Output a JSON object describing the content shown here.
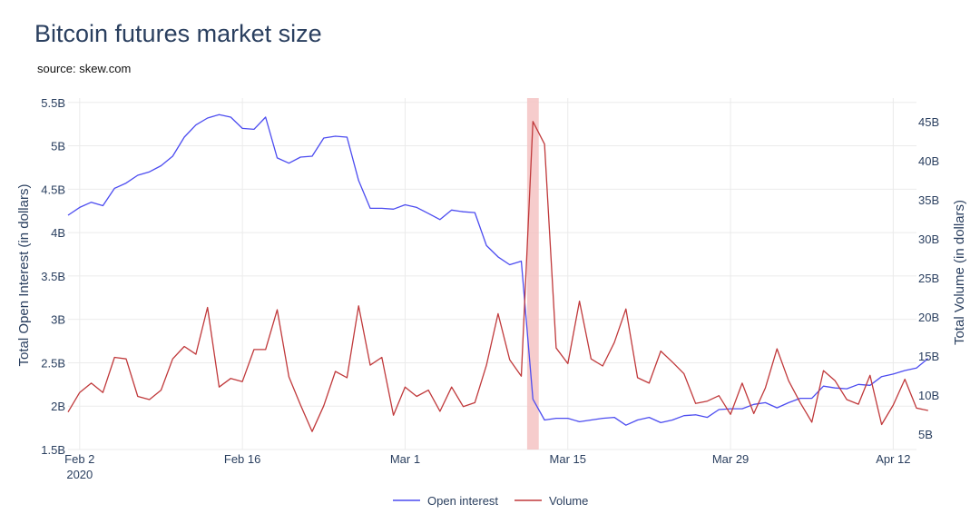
{
  "header": {
    "title": "Bitcoin futures market size",
    "subtitle": "source: skew.com"
  },
  "chart_data": {
    "type": "line",
    "title": "Bitcoin futures market size",
    "subtitle": "source: skew.com",
    "start_date": "2020-02-01",
    "x_tick_labels": [
      {
        "date": "2020-02-02",
        "label": "Feb 2",
        "sublabel": "2020"
      },
      {
        "date": "2020-02-16",
        "label": "Feb 16"
      },
      {
        "date": "2020-03-01",
        "label": "Mar 1"
      },
      {
        "date": "2020-03-15",
        "label": "Mar 15"
      },
      {
        "date": "2020-03-29",
        "label": "Mar 29"
      },
      {
        "date": "2020-04-12",
        "label": "Apr 12"
      }
    ],
    "xlim": [
      "2020-02-01",
      "2020-04-14"
    ],
    "y_left": {
      "label": "Total Open Interest (in dollars)",
      "range": [
        1.5,
        5.55
      ],
      "ticks": [
        1.5,
        2,
        2.5,
        3,
        3.5,
        4,
        4.5,
        5,
        5.5
      ],
      "tick_labels": [
        "1.5B",
        "2B",
        "2.5B",
        "3B",
        "3.5B",
        "4B",
        "4.5B",
        "5B",
        "5.5B"
      ]
    },
    "y_right": {
      "label": "Total Volume (in dollars)",
      "range": [
        3.0,
        48.0
      ],
      "ticks": [
        5,
        10,
        15,
        20,
        25,
        30,
        35,
        40,
        45
      ],
      "tick_labels": [
        "5B",
        "10B",
        "15B",
        "20B",
        "25B",
        "30B",
        "35B",
        "40B",
        "45B"
      ]
    },
    "highlight": {
      "start": "2020-03-12",
      "end": "2020-03-13",
      "color": "#f4c3c3"
    },
    "grid": true,
    "legend_position": "bottom-center",
    "series": [
      {
        "name": "Open interest",
        "axis": "left",
        "color": "#4c4cf0",
        "values": [
          4.2,
          4.29,
          4.35,
          4.31,
          4.51,
          4.57,
          4.66,
          4.7,
          4.77,
          4.88,
          5.1,
          5.24,
          5.32,
          5.36,
          5.33,
          5.2,
          5.19,
          5.33,
          4.86,
          4.8,
          4.87,
          4.88,
          5.09,
          5.11,
          5.1,
          4.6,
          4.28,
          4.28,
          4.27,
          4.32,
          4.29,
          4.22,
          4.15,
          4.26,
          4.24,
          4.23,
          3.85,
          3.72,
          3.63,
          3.67,
          2.08,
          1.84,
          1.86,
          1.86,
          1.82,
          1.84,
          1.86,
          1.87,
          1.78,
          1.84,
          1.87,
          1.81,
          1.84,
          1.89,
          1.9,
          1.87,
          1.96,
          1.97,
          1.97,
          2.02,
          2.04,
          1.98,
          2.04,
          2.09,
          2.09,
          2.23,
          2.21,
          2.2,
          2.25,
          2.24,
          2.34,
          2.37,
          2.41,
          2.44,
          2.55
        ]
      },
      {
        "name": "Volume",
        "axis": "right",
        "color": "#c0393b",
        "values": [
          7.8,
          10.3,
          11.5,
          10.3,
          14.8,
          14.6,
          9.8,
          9.4,
          10.6,
          14.6,
          16.2,
          15.2,
          21.2,
          11.0,
          12.1,
          11.7,
          15.8,
          15.8,
          20.9,
          12.3,
          8.7,
          5.3,
          8.6,
          13.0,
          12.2,
          21.4,
          13.8,
          14.8,
          7.4,
          11.0,
          9.8,
          10.6,
          7.9,
          11.0,
          8.5,
          9.0,
          13.8,
          20.4,
          14.5,
          12.4,
          45.0,
          42.1,
          16.0,
          14.0,
          22.0,
          14.6,
          13.7,
          16.7,
          21.0,
          12.2,
          11.5,
          15.6,
          14.2,
          12.7,
          8.9,
          9.2,
          9.9,
          7.5,
          11.5,
          7.6,
          10.9,
          15.9,
          11.8,
          9.0,
          6.5,
          13.1,
          11.8,
          9.4,
          8.8,
          12.5,
          6.2,
          8.7,
          12.0,
          8.3,
          8.0
        ]
      }
    ]
  },
  "legend": {
    "items": [
      {
        "label": "Open interest",
        "color": "#4c4cf0"
      },
      {
        "label": "Volume",
        "color": "#c0393b"
      }
    ]
  }
}
